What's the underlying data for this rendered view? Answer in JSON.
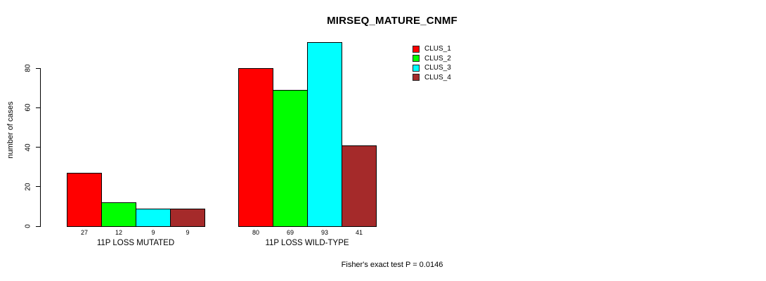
{
  "chart_data": {
    "type": "bar",
    "title": "MIRSEQ_MATURE_CNMF",
    "ylabel": "number of cases",
    "xlabel": "",
    "yticks": [
      0,
      20,
      40,
      60,
      80
    ],
    "ylim": [
      0,
      93
    ],
    "grid": false,
    "legend_position": "top-right",
    "categories": [
      "11P LOSS MUTATED",
      "11P LOSS WILD-TYPE"
    ],
    "series": [
      {
        "name": "CLUS_1",
        "color": "#FF0000",
        "values": [
          27,
          80
        ]
      },
      {
        "name": "CLUS_2",
        "color": "#00FF00",
        "values": [
          12,
          69
        ]
      },
      {
        "name": "CLUS_3",
        "color": "#00FFFF",
        "values": [
          9,
          93
        ]
      },
      {
        "name": "CLUS_4",
        "color": "#A52A2A",
        "values": [
          9,
          41
        ]
      }
    ],
    "bar_value_labels_shown": true,
    "annotation": "Fisher's exact test P = 0.0146"
  }
}
